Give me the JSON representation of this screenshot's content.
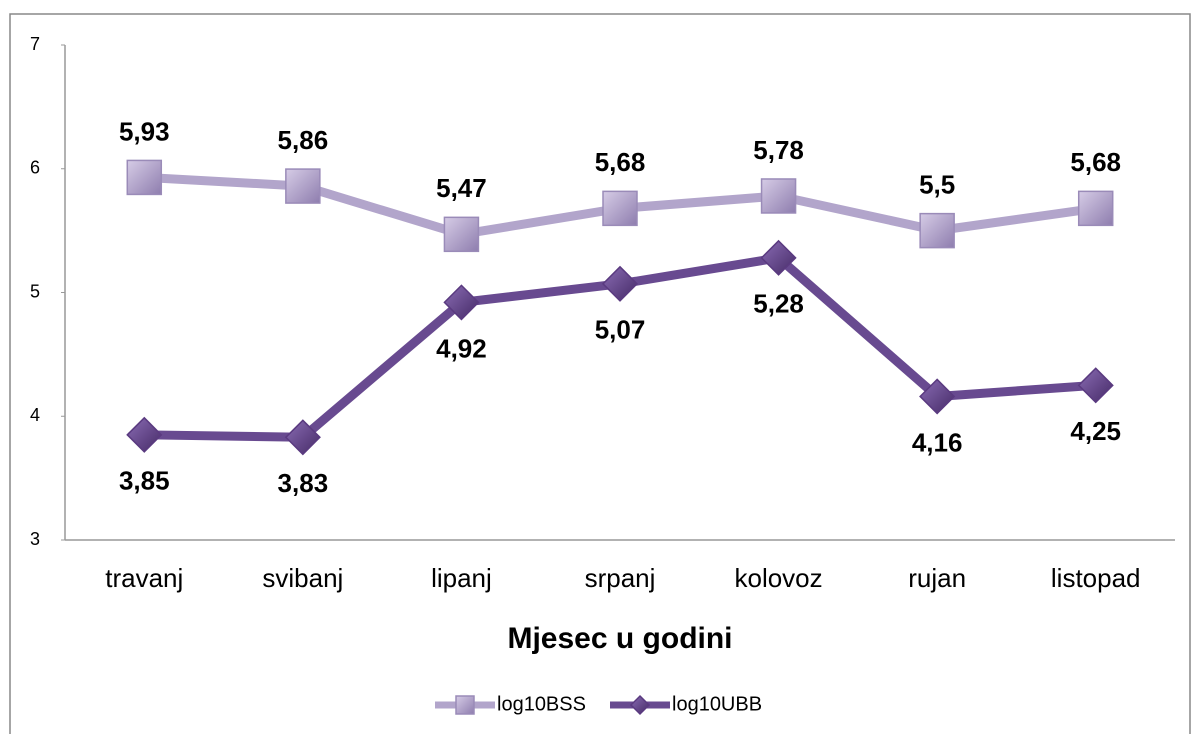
{
  "chart_data": {
    "type": "line",
    "x_label": "Mjesec u godini",
    "categories": [
      "travanj",
      "svibanj",
      "lipanj",
      "srpanj",
      "kolovoz",
      "rujan",
      "listopad"
    ],
    "series": [
      {
        "name": "log10BSS",
        "color": "#b2a5cb",
        "marker": "square",
        "marker_color": "#9a8bb8",
        "label_position": "above",
        "values": [
          5.93,
          5.86,
          5.47,
          5.68,
          5.78,
          5.5,
          5.68
        ],
        "value_labels": [
          "5,93",
          "5,86",
          "5,47",
          "5,68",
          "5,78",
          "5,5",
          "5,68"
        ]
      },
      {
        "name": "log10UBB",
        "color": "#684a90",
        "marker": "diamond",
        "marker_color": "#5a3a80",
        "label_position": "below",
        "values": [
          3.85,
          3.83,
          4.92,
          5.07,
          5.28,
          4.16,
          4.25
        ],
        "value_labels": [
          "3,85",
          "3,83",
          "4,92",
          "5,07",
          "5,28",
          "4,16",
          "4,25"
        ]
      }
    ],
    "ylim": [
      3,
      7
    ],
    "yticks": [
      3,
      4,
      5,
      6,
      7
    ],
    "grid": false,
    "legend": "bottom"
  }
}
